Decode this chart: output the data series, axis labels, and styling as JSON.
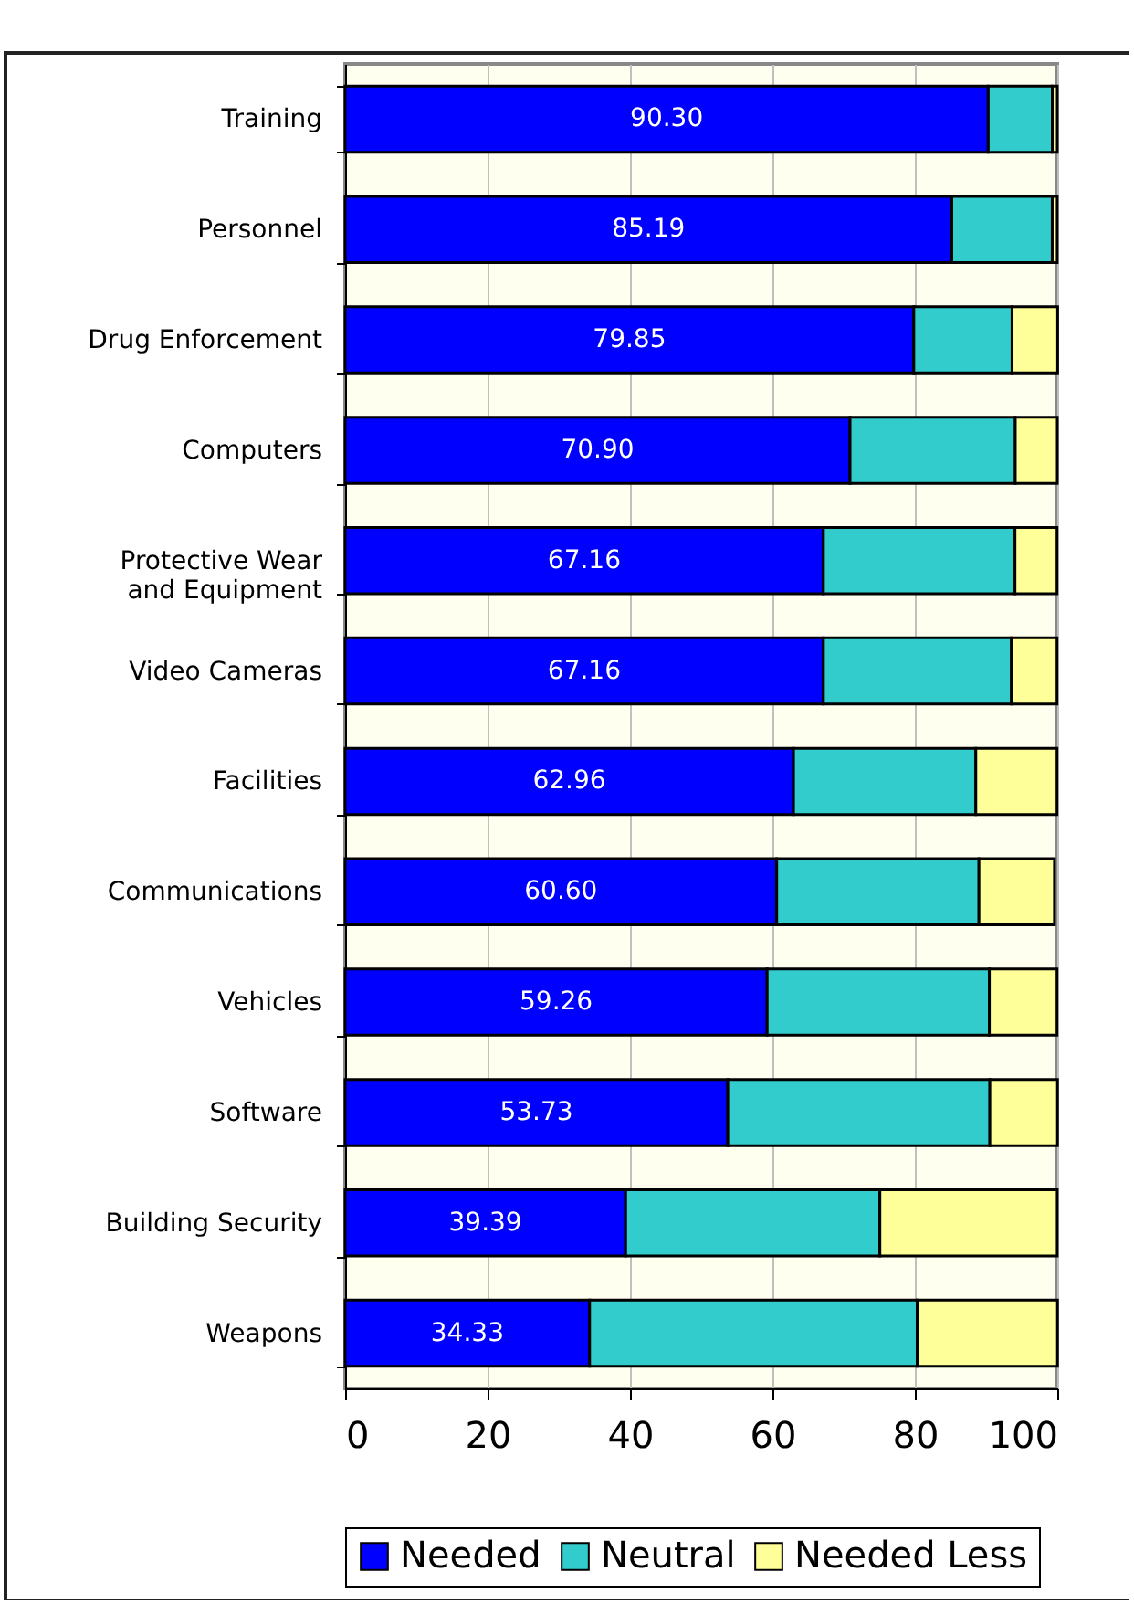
{
  "chart_data": {
    "type": "bar",
    "orientation": "horizontal",
    "stacked": true,
    "categories": [
      "Training",
      "Personnel",
      "Drug Enforcement",
      "Computers",
      "Protective Wear and Equipment",
      "Video Cameras",
      "Facilities",
      "Communications",
      "Vehicles",
      "Software",
      "Building Security",
      "Weapons"
    ],
    "series": [
      {
        "name": "Needed",
        "color": "#0000ff",
        "values": [
          90.3,
          85.19,
          79.85,
          70.9,
          67.16,
          67.16,
          62.96,
          60.6,
          59.26,
          53.73,
          39.39,
          34.33
        ],
        "value_labels": [
          "90.30",
          "85.19",
          "79.85",
          "70.90",
          "67.16",
          "67.16",
          "62.96",
          "60.60",
          "59.26",
          "53.73",
          "39.39",
          "34.33"
        ]
      },
      {
        "name": "Neutral",
        "color": "#33cccc",
        "values": [
          9.0,
          14.1,
          13.8,
          23.2,
          26.9,
          26.4,
          25.6,
          28.4,
          31.2,
          36.8,
          35.7,
          46.0
        ]
      },
      {
        "name": "Needed Less",
        "color": "#ffff99",
        "values": [
          0.7,
          0.7,
          6.4,
          5.9,
          5.9,
          6.4,
          11.4,
          10.6,
          9.5,
          9.5,
          24.9,
          19.7
        ]
      }
    ],
    "xlim": [
      0,
      100
    ],
    "xticks": [
      0,
      20,
      40,
      60,
      80,
      100
    ],
    "grid": "x",
    "legend": "bottom"
  }
}
